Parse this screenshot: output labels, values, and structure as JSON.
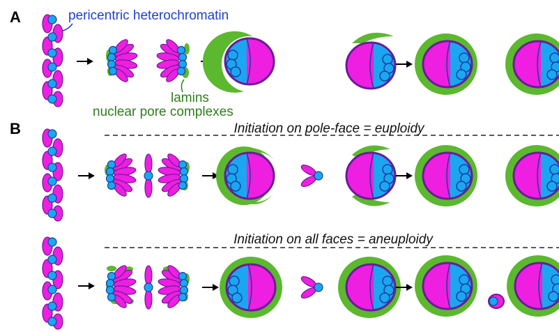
{
  "panel_a": {
    "label": "A",
    "heterochromatin_label": "pericentric heterochromatin",
    "lamins_label": "lamins",
    "npc_label": "nuclear pore complexes"
  },
  "panel_b": {
    "label": "B",
    "rows": [
      {
        "caption": "Initiation on pole-face = euploidy"
      },
      {
        "caption": "Initiation on all faces = aneuploidy"
      }
    ]
  }
}
